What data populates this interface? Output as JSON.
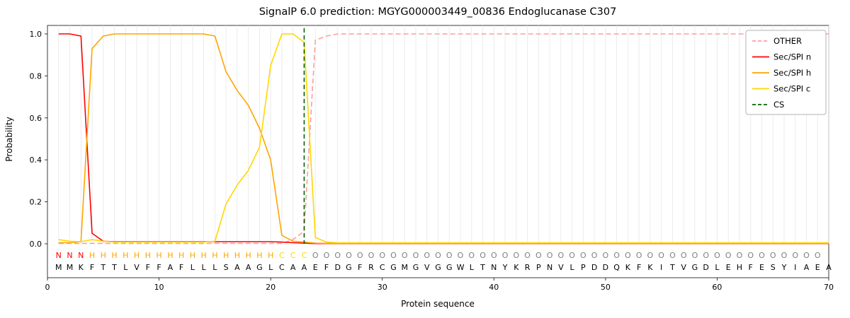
{
  "chart_data": {
    "type": "line",
    "title": "SignalP 6.0 prediction: MGYG000003449_00836 Endoglucanase C307",
    "xlabel": "Protein sequence",
    "ylabel": "Probability",
    "xlim": [
      0,
      70
    ],
    "ylim": [
      0.0,
      1.05
    ],
    "x_ticks": [
      0,
      10,
      20,
      30,
      40,
      50,
      60,
      70
    ],
    "y_ticks": [
      0.0,
      0.2,
      0.4,
      0.6,
      0.8,
      1.0
    ],
    "grid": "vertical line per residue, light gray",
    "legend_position": "upper right",
    "sequence": "MMKFTTLVFFAFLLLSAAGLCAAEFDGFRCGMGVGGWLTNYKRPNVLPDDQKFKITVGDLEHFESYIAEA",
    "annotation": "NNNHHHHHHHHHHHHHHHHHCCCOOOOOOOOOOOOOOOOOOOOOOOOOOOOOOOOOOOOOOOOOOOOOO",
    "annotation_colors": {
      "N": "#ff0000",
      "H": "#ffa500",
      "C": "#ffd700",
      "O": "#7f7f7f"
    },
    "cs_position": 23,
    "series": [
      {
        "name": "OTHER",
        "color": "#ff9d9d",
        "style": "dashed",
        "values": [
          0.002,
          0.002,
          0.002,
          0.002,
          0.002,
          0.002,
          0.002,
          0.002,
          0.002,
          0.002,
          0.002,
          0.002,
          0.002,
          0.002,
          0.002,
          0.002,
          0.002,
          0.002,
          0.002,
          0.002,
          0.002,
          0.02,
          0.06,
          0.97,
          0.99,
          1.0,
          1.0,
          1.0,
          1.0,
          1.0,
          1.0,
          1.0,
          1.0,
          1.0,
          1.0,
          1.0,
          1.0,
          1.0,
          1.0,
          1.0,
          1.0,
          1.0,
          1.0,
          1.0,
          1.0,
          1.0,
          1.0,
          1.0,
          1.0,
          1.0,
          1.0,
          1.0,
          1.0,
          1.0,
          1.0,
          1.0,
          1.0,
          1.0,
          1.0,
          1.0,
          1.0,
          1.0,
          1.0,
          1.0,
          1.0,
          1.0,
          1.0,
          1.0,
          1.0,
          1.0
        ]
      },
      {
        "name": "Sec/SPI n",
        "color": "#ff0000",
        "style": "solid",
        "values": [
          1.0,
          1.0,
          0.99,
          0.05,
          0.012,
          0.01,
          0.01,
          0.01,
          0.01,
          0.01,
          0.01,
          0.01,
          0.01,
          0.01,
          0.01,
          0.01,
          0.01,
          0.01,
          0.01,
          0.01,
          0.008,
          0.005,
          0.003,
          0.001,
          0.001,
          0.001,
          0.001,
          0.001,
          0.001,
          0.001,
          0.001,
          0.001,
          0.001,
          0.001,
          0.001,
          0.001,
          0.001,
          0.001,
          0.001,
          0.001,
          0.001,
          0.001,
          0.001,
          0.001,
          0.001,
          0.001,
          0.001,
          0.001,
          0.001,
          0.001,
          0.001,
          0.001,
          0.001,
          0.001,
          0.001,
          0.001,
          0.001,
          0.001,
          0.001,
          0.001,
          0.001,
          0.001,
          0.001,
          0.001,
          0.001,
          0.001,
          0.001,
          0.001,
          0.001,
          0.001
        ]
      },
      {
        "name": "Sec/SPI h",
        "color": "#ffa500",
        "style": "solid",
        "values": [
          0.005,
          0.005,
          0.01,
          0.93,
          0.99,
          1.0,
          1.0,
          1.0,
          1.0,
          1.0,
          1.0,
          1.0,
          1.0,
          1.0,
          0.99,
          0.82,
          0.73,
          0.66,
          0.55,
          0.4,
          0.04,
          0.012,
          0.008,
          0.003,
          0.002,
          0.002,
          0.002,
          0.002,
          0.002,
          0.002,
          0.002,
          0.002,
          0.002,
          0.002,
          0.002,
          0.002,
          0.002,
          0.002,
          0.002,
          0.002,
          0.002,
          0.002,
          0.002,
          0.002,
          0.002,
          0.002,
          0.002,
          0.002,
          0.002,
          0.002,
          0.002,
          0.002,
          0.002,
          0.002,
          0.002,
          0.002,
          0.002,
          0.002,
          0.002,
          0.002,
          0.002,
          0.002,
          0.002,
          0.002,
          0.002,
          0.002,
          0.002,
          0.002,
          0.002,
          0.002
        ]
      },
      {
        "name": "Sec/SPI c",
        "color": "#ffd700",
        "style": "solid",
        "values": [
          0.02,
          0.012,
          0.01,
          0.02,
          0.012,
          0.008,
          0.008,
          0.008,
          0.008,
          0.008,
          0.008,
          0.008,
          0.008,
          0.008,
          0.012,
          0.19,
          0.28,
          0.35,
          0.46,
          0.85,
          1.0,
          1.0,
          0.96,
          0.03,
          0.008,
          0.005,
          0.005,
          0.005,
          0.005,
          0.005,
          0.005,
          0.005,
          0.005,
          0.005,
          0.005,
          0.005,
          0.005,
          0.005,
          0.005,
          0.005,
          0.005,
          0.005,
          0.005,
          0.005,
          0.005,
          0.005,
          0.005,
          0.005,
          0.005,
          0.005,
          0.005,
          0.005,
          0.005,
          0.005,
          0.005,
          0.005,
          0.005,
          0.005,
          0.005,
          0.005,
          0.005,
          0.005,
          0.005,
          0.005,
          0.005,
          0.005,
          0.005,
          0.005,
          0.005,
          0.005
        ]
      },
      {
        "name": "CS",
        "color": "#006400",
        "style": "dashed-vertical",
        "x": 23
      }
    ]
  }
}
